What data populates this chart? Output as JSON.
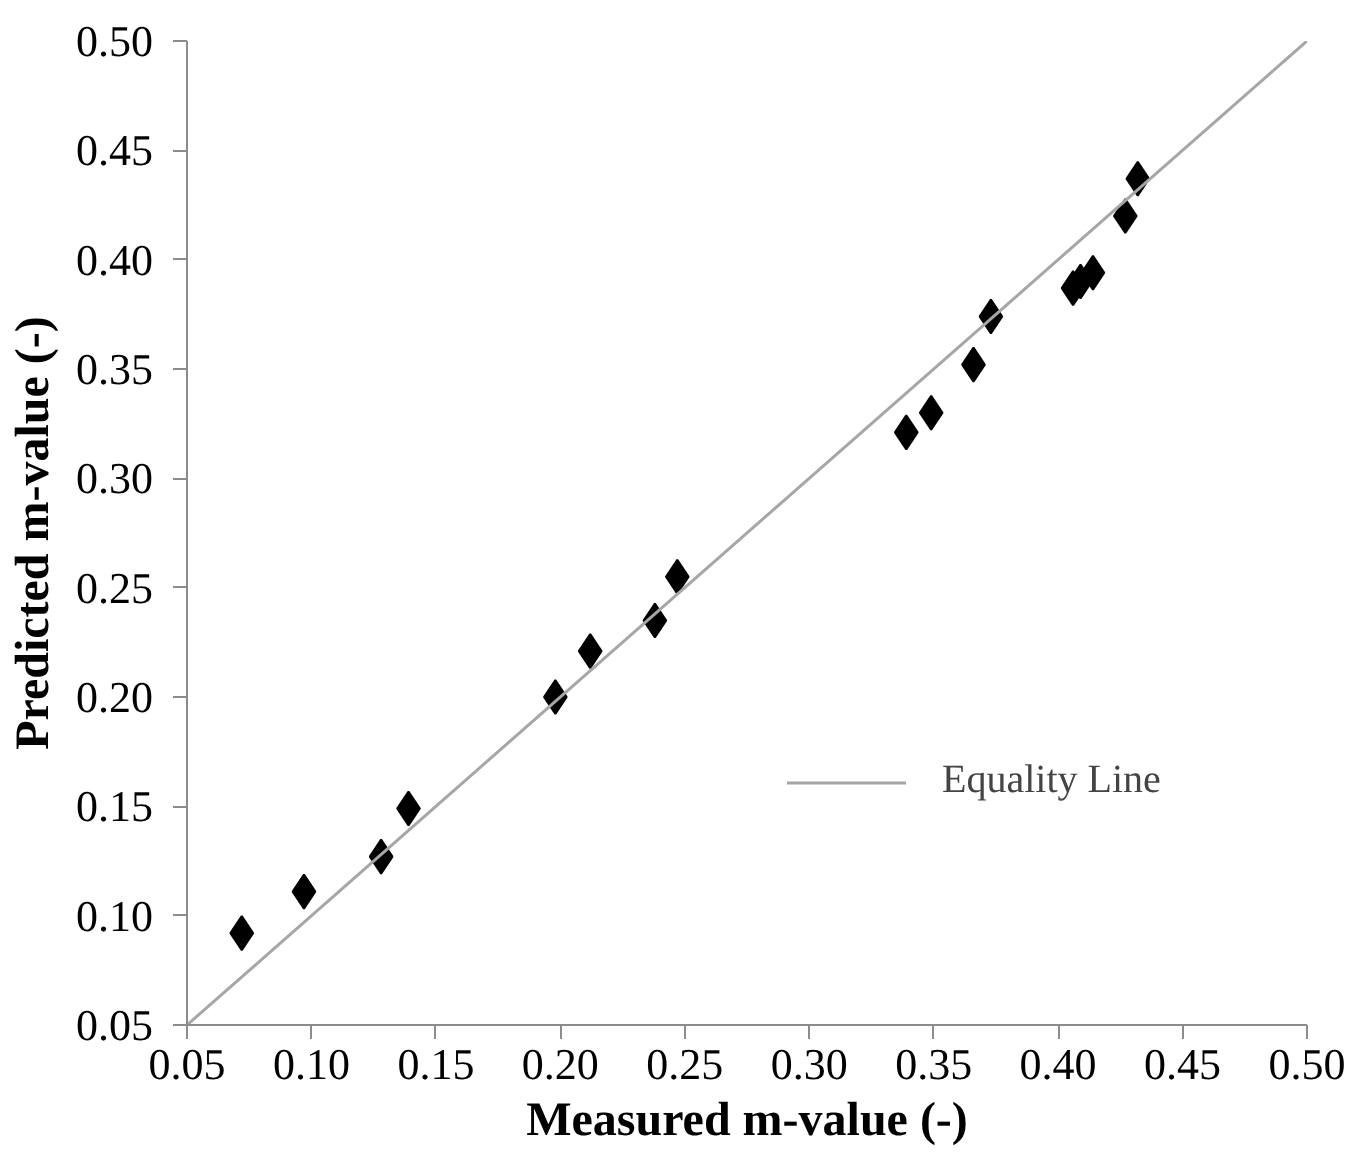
{
  "chart_data": {
    "type": "scatter",
    "xlabel": "Measured m-value (-)",
    "ylabel": "Predicted m-value (-)",
    "xlim": [
      0.05,
      0.5
    ],
    "ylim": [
      0.05,
      0.5
    ],
    "xticks": [
      {
        "value": 0.05,
        "label": "0.05"
      },
      {
        "value": 0.1,
        "label": "0.10"
      },
      {
        "value": 0.15,
        "label": "0.15"
      },
      {
        "value": 0.2,
        "label": "0.20"
      },
      {
        "value": 0.25,
        "label": "0.25"
      },
      {
        "value": 0.3,
        "label": "0.30"
      },
      {
        "value": 0.35,
        "label": "0.35"
      },
      {
        "value": 0.4,
        "label": "0.40"
      },
      {
        "value": 0.45,
        "label": "0.45"
      },
      {
        "value": 0.5,
        "label": "0.50"
      }
    ],
    "yticks": [
      {
        "value": 0.05,
        "label": "0.05"
      },
      {
        "value": 0.1,
        "label": "0.10"
      },
      {
        "value": 0.15,
        "label": "0.15"
      },
      {
        "value": 0.2,
        "label": "0.20"
      },
      {
        "value": 0.25,
        "label": "0.25"
      },
      {
        "value": 0.3,
        "label": "0.30"
      },
      {
        "value": 0.35,
        "label": "0.35"
      },
      {
        "value": 0.4,
        "label": "0.40"
      },
      {
        "value": 0.45,
        "label": "0.45"
      },
      {
        "value": 0.5,
        "label": "0.50"
      }
    ],
    "grid": false,
    "legend": "bottom right",
    "series": [
      {
        "marker": "diamond",
        "color": "#000000",
        "x": [
          0.072,
          0.097,
          0.128,
          0.139,
          0.198,
          0.212,
          0.238,
          0.247,
          0.339,
          0.349,
          0.366,
          0.373,
          0.406,
          0.409,
          0.414,
          0.427,
          0.432
        ],
        "values": [
          0.092,
          0.111,
          0.127,
          0.149,
          0.2,
          0.221,
          0.235,
          0.255,
          0.321,
          0.33,
          0.352,
          0.374,
          0.387,
          0.39,
          0.394,
          0.42,
          0.437
        ]
      },
      {
        "type": "line",
        "marker": "none",
        "name": "Equality Line",
        "color": "#a6a6a6",
        "x": [
          0.05,
          0.5
        ],
        "values": [
          0.05,
          0.5
        ]
      }
    ]
  }
}
